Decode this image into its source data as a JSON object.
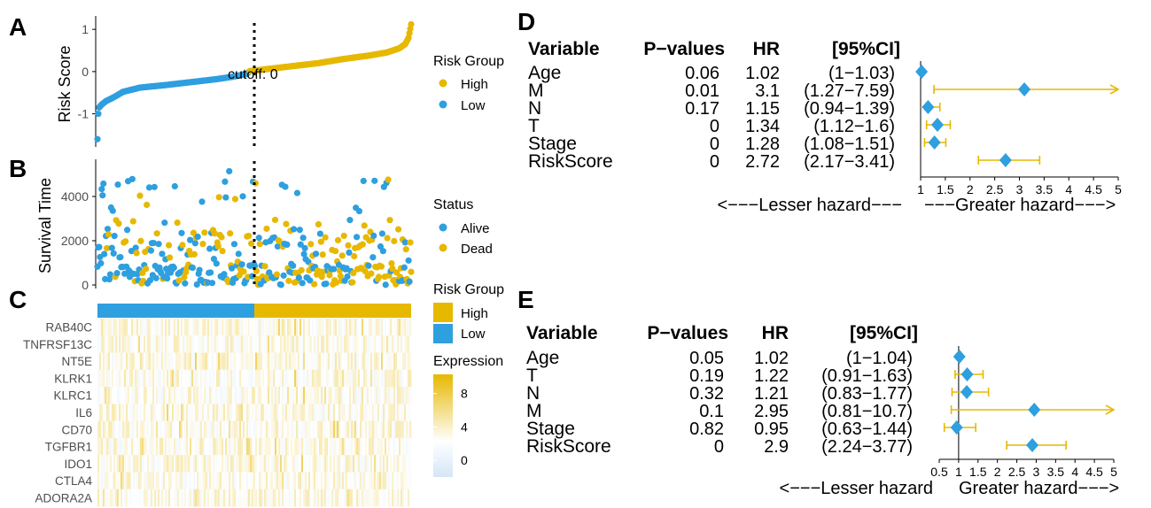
{
  "colors": {
    "high": "#E7B800",
    "low": "#2E9FDF",
    "axis": "#000000",
    "text": "#4D4D4D",
    "grid_text": "#333333"
  },
  "chart_data": [
    {
      "panel": "A",
      "type": "scatter",
      "ylabel": "Risk Score",
      "ylim": [
        -1.7,
        1.15
      ],
      "yticks": [
        "1",
        "0",
        "-1"
      ],
      "yticks_values": [
        1,
        0,
        -1
      ],
      "cutoff_label": "cutoff: 0",
      "n_points": 370,
      "cutoff_index": 178,
      "legend": {
        "title": "Risk Group",
        "items": [
          "High",
          "Low"
        ]
      },
      "low_anchors": [
        [
          0,
          -1.6
        ],
        [
          1,
          -1.0
        ],
        [
          2,
          -0.85
        ],
        [
          5,
          -0.78
        ],
        [
          10,
          -0.7
        ],
        [
          20,
          -0.6
        ],
        [
          30,
          -0.48
        ],
        [
          50,
          -0.38
        ],
        [
          80,
          -0.32
        ],
        [
          110,
          -0.25
        ],
        [
          140,
          -0.18
        ],
        [
          160,
          -0.12
        ],
        [
          176,
          -0.05
        ],
        [
          178,
          -0.01
        ]
      ],
      "high_anchors": [
        [
          179,
          0.01
        ],
        [
          200,
          0.06
        ],
        [
          230,
          0.13
        ],
        [
          260,
          0.2
        ],
        [
          290,
          0.3
        ],
        [
          320,
          0.38
        ],
        [
          340,
          0.45
        ],
        [
          355,
          0.55
        ],
        [
          362,
          0.65
        ],
        [
          366,
          0.8
        ],
        [
          369,
          1.12
        ]
      ]
    },
    {
      "panel": "B",
      "type": "scatter",
      "ylabel": "Survival Time",
      "ylim": [
        0,
        5600
      ],
      "yticks": [
        "4000",
        "2000",
        "0"
      ],
      "yticks_values": [
        4000,
        2000,
        0
      ],
      "legend": {
        "title": "Status",
        "items": [
          "Alive",
          "Dead"
        ]
      },
      "n_points": 370
    },
    {
      "panel": "C",
      "type": "heatmap",
      "genes": [
        "RAB40C",
        "TNFRSF13C",
        "NT5E",
        "KLRK1",
        "KLRC1",
        "IL6",
        "CD70",
        "TGFBR1",
        "IDO1",
        "CTLA4",
        "ADORA2A"
      ],
      "annotation_legend": {
        "title": "Risk Group",
        "items": [
          "High",
          "Low"
        ]
      },
      "expression_legend": {
        "title": "Expression",
        "ticks": [
          "8",
          "4",
          "0"
        ],
        "tick_values": [
          8,
          4,
          0
        ]
      }
    },
    {
      "panel": "D",
      "type": "table",
      "headers": [
        "Variable",
        "P−values",
        "HR",
        "[95%CI]"
      ],
      "rows": [
        {
          "variable": "Age",
          "p": "0.06",
          "hr": "1.02",
          "ci": "(1−1.03)",
          "hr_value": 1.02,
          "low": 1.0,
          "high": 1.03,
          "arrow": false
        },
        {
          "variable": "M",
          "p": "0.01",
          "hr": "3.1",
          "ci": "(1.27−7.59)",
          "hr_value": 3.1,
          "low": 1.27,
          "high": 7.59,
          "arrow": true
        },
        {
          "variable": "N",
          "p": "0.17",
          "hr": "1.15",
          "ci": "(0.94−1.39)",
          "hr_value": 1.15,
          "low": 0.94,
          "high": 1.39,
          "arrow": false
        },
        {
          "variable": "T",
          "p": "0",
          "hr": "1.34",
          "ci": "(1.12−1.6)",
          "hr_value": 1.34,
          "low": 1.12,
          "high": 1.6,
          "arrow": false
        },
        {
          "variable": "Stage",
          "p": "0",
          "hr": "1.28",
          "ci": "(1.08−1.51)",
          "hr_value": 1.28,
          "low": 1.08,
          "high": 1.51,
          "arrow": false
        },
        {
          "variable": "RiskScore",
          "p": "0",
          "hr": "2.72",
          "ci": "(2.17−3.41)",
          "hr_value": 2.72,
          "low": 2.17,
          "high": 3.41,
          "arrow": false
        }
      ],
      "xlim": [
        1,
        5
      ],
      "xticks": [
        "1",
        "1.5",
        "2",
        "2.5",
        "3",
        "3.5",
        "4",
        "4.5",
        "5"
      ],
      "xticks_values": [
        1,
        1.5,
        2,
        2.5,
        3,
        3.5,
        4,
        4.5,
        5
      ],
      "lesser_label": "<−−−Lesser hazard−−−",
      "greater_label": "−−−Greater hazard−−−>"
    },
    {
      "panel": "E",
      "type": "table",
      "headers": [
        "Variable",
        "P−values",
        "HR",
        "[95%CI]"
      ],
      "rows": [
        {
          "variable": "Age",
          "p": "0.05",
          "hr": "1.02",
          "ci": "(1−1.04)",
          "hr_value": 1.02,
          "low": 1.0,
          "high": 1.04,
          "arrow": false
        },
        {
          "variable": "T",
          "p": "0.19",
          "hr": "1.22",
          "ci": "(0.91−1.63)",
          "hr_value": 1.22,
          "low": 0.91,
          "high": 1.63,
          "arrow": false
        },
        {
          "variable": "N",
          "p": "0.32",
          "hr": "1.21",
          "ci": "(0.83−1.77)",
          "hr_value": 1.21,
          "low": 0.83,
          "high": 1.77,
          "arrow": false
        },
        {
          "variable": "M",
          "p": "0.1",
          "hr": "2.95",
          "ci": "(0.81−10.7)",
          "hr_value": 2.95,
          "low": 0.81,
          "high": 10.7,
          "arrow": true
        },
        {
          "variable": "Stage",
          "p": "0.82",
          "hr": "0.95",
          "ci": "(0.63−1.44)",
          "hr_value": 0.95,
          "low": 0.63,
          "high": 1.44,
          "arrow": false
        },
        {
          "variable": "RiskScore",
          "p": "0",
          "hr": "2.9",
          "ci": "(2.24−3.77)",
          "hr_value": 2.9,
          "low": 2.24,
          "high": 3.77,
          "arrow": false
        }
      ],
      "xlim": [
        0.5,
        5
      ],
      "xticks": [
        "0.5",
        "1",
        "1.5",
        "2",
        "2.5",
        "3",
        "3.5",
        "4",
        "4.5",
        "5"
      ],
      "xticks_values": [
        0.5,
        1,
        1.5,
        2,
        2.5,
        3,
        3.5,
        4,
        4.5,
        5
      ],
      "lesser_label": "<−−−Lesser hazard",
      "greater_label": "Greater hazard−−−>"
    }
  ],
  "panel_labels": [
    "A",
    "B",
    "C",
    "D",
    "E"
  ]
}
